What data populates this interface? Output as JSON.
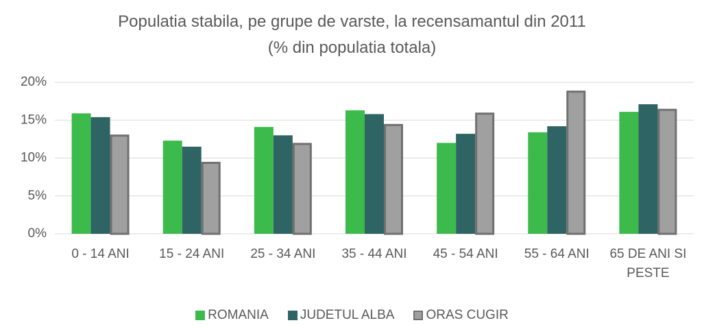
{
  "chart_data": {
    "type": "bar",
    "title": "Populatia stabila, pe grupe de varste, la recensamantul din 2011",
    "subtitle": "(% din populatia totala)",
    "categories": [
      "0 - 14 ANI",
      "15 - 24 ANI",
      "25 - 34 ANI",
      "35 - 44 ANI",
      "45 - 54 ANI",
      "55 - 64 ANI",
      "65 DE ANI SI PESTE"
    ],
    "series": [
      {
        "name": "ROMANIA",
        "color": "#3cba4c",
        "values": [
          15.9,
          12.3,
          14.1,
          16.3,
          12.0,
          13.4,
          16.1
        ]
      },
      {
        "name": "JUDETUL ALBA",
        "color": "#2e6464",
        "values": [
          15.4,
          11.5,
          13.0,
          15.8,
          13.2,
          14.2,
          17.1
        ]
      },
      {
        "name": "ORAS CUGIR",
        "color": "#a0a0a0",
        "edge": "#707070",
        "values": [
          13.1,
          9.5,
          12.0,
          14.5,
          16.0,
          18.9,
          16.5
        ]
      }
    ],
    "ylim": [
      0,
      20
    ],
    "yticks": [
      {
        "value": 0,
        "label": "0%"
      },
      {
        "value": 5,
        "label": "5%"
      },
      {
        "value": 10,
        "label": "10%"
      },
      {
        "value": 15,
        "label": "15%"
      },
      {
        "value": 20,
        "label": "20%"
      }
    ],
    "grid": true,
    "legend": "bottom"
  }
}
